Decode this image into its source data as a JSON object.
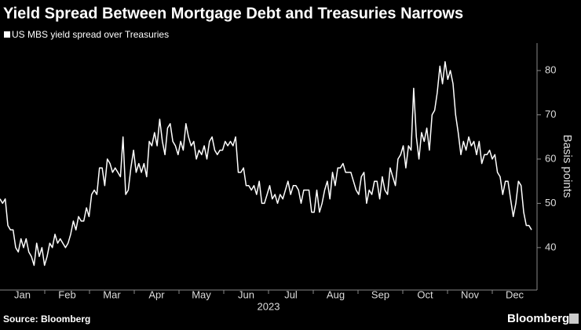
{
  "chart_data": {
    "type": "line",
    "title": "Yield Spread Between Mortgage Debt and Treasuries Narrows",
    "legend_label": "US MBS yield spread over Treasuries",
    "y_axis_label": "Basis points",
    "x_axis_label": "2023",
    "source": "Source: Bloomberg",
    "brand": "Bloomberg",
    "month_labels": [
      "Jan",
      "Feb",
      "Mar",
      "Apr",
      "May",
      "Jun",
      "Jul",
      "Aug",
      "Sep",
      "Oct",
      "Nov",
      "Dec"
    ],
    "color": "#ffffff",
    "ylim": [
      31.3,
      86.2
    ],
    "yticks": [
      40,
      50,
      60,
      70,
      80
    ],
    "y_axis_side": "right",
    "grid": false,
    "values": [
      51,
      50,
      51,
      45,
      44,
      44,
      40,
      39,
      42,
      40,
      42,
      39,
      38,
      36,
      41,
      38,
      40,
      36,
      38,
      41,
      40,
      43,
      41,
      42,
      41,
      40,
      41,
      43,
      46,
      44,
      47,
      46,
      46,
      49,
      47,
      52,
      53,
      52,
      58,
      58,
      54,
      60,
      59,
      57,
      58,
      57,
      56,
      65,
      52,
      53,
      58,
      62,
      57,
      59,
      57,
      59,
      56,
      64,
      63,
      66,
      63,
      69,
      64,
      61,
      67,
      68,
      64,
      63,
      61,
      64,
      62,
      68,
      65,
      63,
      64,
      60,
      62,
      61,
      63,
      60,
      64,
      65,
      62,
      61,
      62,
      62,
      64,
      63,
      64,
      63,
      65,
      57,
      57,
      58,
      54,
      54,
      53,
      54,
      52,
      55,
      50,
      50,
      52,
      54,
      51,
      52,
      50,
      52,
      51,
      53,
      55,
      52,
      54,
      54,
      53,
      50,
      53,
      53,
      53,
      48,
      48,
      53,
      48,
      50,
      53,
      55,
      51,
      57,
      54,
      58,
      58,
      59,
      57,
      57,
      57,
      55,
      53,
      52,
      56,
      57,
      50,
      53,
      52,
      55,
      55,
      51,
      56,
      53,
      52,
      58,
      56,
      54,
      60,
      61,
      63,
      58,
      63,
      62,
      76,
      65,
      60,
      66,
      64,
      67,
      62,
      70,
      71,
      75,
      81,
      77,
      82,
      78,
      80,
      77,
      70,
      66,
      61,
      64,
      62,
      65,
      63,
      64,
      61,
      64,
      59,
      61,
      61,
      62,
      60,
      61,
      57,
      56,
      52,
      55,
      55,
      51,
      47,
      50,
      55,
      54,
      48,
      45,
      45,
      44
    ]
  }
}
